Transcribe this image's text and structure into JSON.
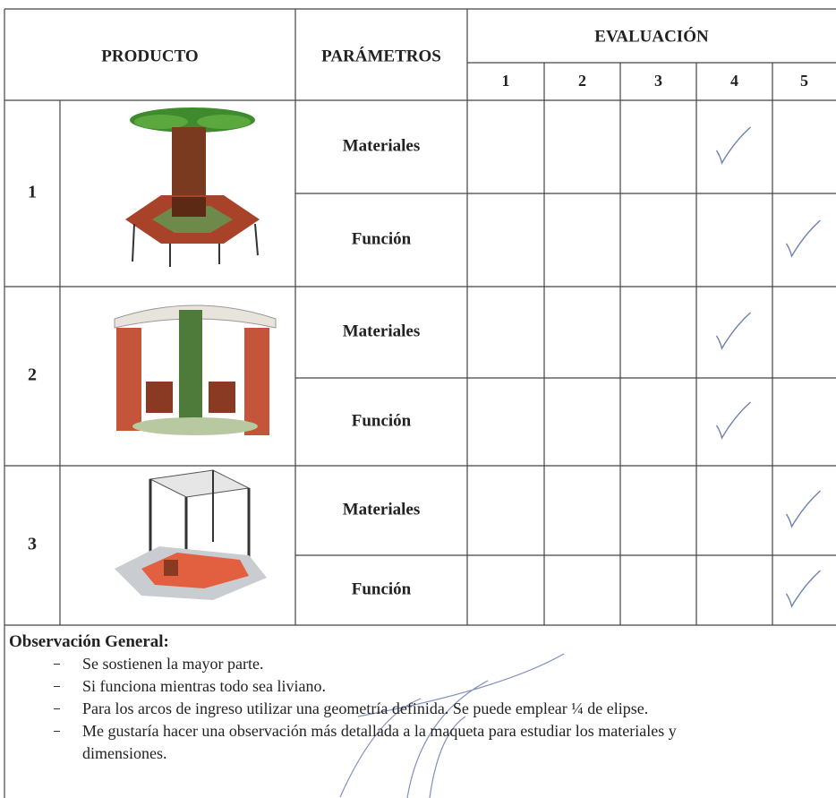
{
  "header": {
    "product": "PRODUCTO",
    "parameters": "PARÁMETROS",
    "evaluation": "EVALUACIÓN",
    "scale": [
      "1",
      "2",
      "3",
      "4",
      "5"
    ]
  },
  "products": [
    {
      "number": "1",
      "rows": [
        {
          "parameter": "Materiales",
          "rating": 4
        },
        {
          "parameter": "Función",
          "rating": 5
        }
      ]
    },
    {
      "number": "2",
      "rows": [
        {
          "parameter": "Materiales",
          "rating": 4
        },
        {
          "parameter": "Función",
          "rating": 4
        }
      ]
    },
    {
      "number": "3",
      "rows": [
        {
          "parameter": "Materiales",
          "rating": 5
        },
        {
          "parameter": "Función",
          "rating": 5
        }
      ]
    }
  ],
  "observations": {
    "title": "Observación General:",
    "items": [
      "Se sostienen la mayor parte.",
      "Si funciona mientras todo sea liviano.",
      "Para los arcos de ingreso utilizar una geometría definida. Se puede emplear ¼ de elipse.",
      "Me gustaría hacer una observación más detallada a la maqueta para estudiar los materiales y dimensiones."
    ]
  }
}
